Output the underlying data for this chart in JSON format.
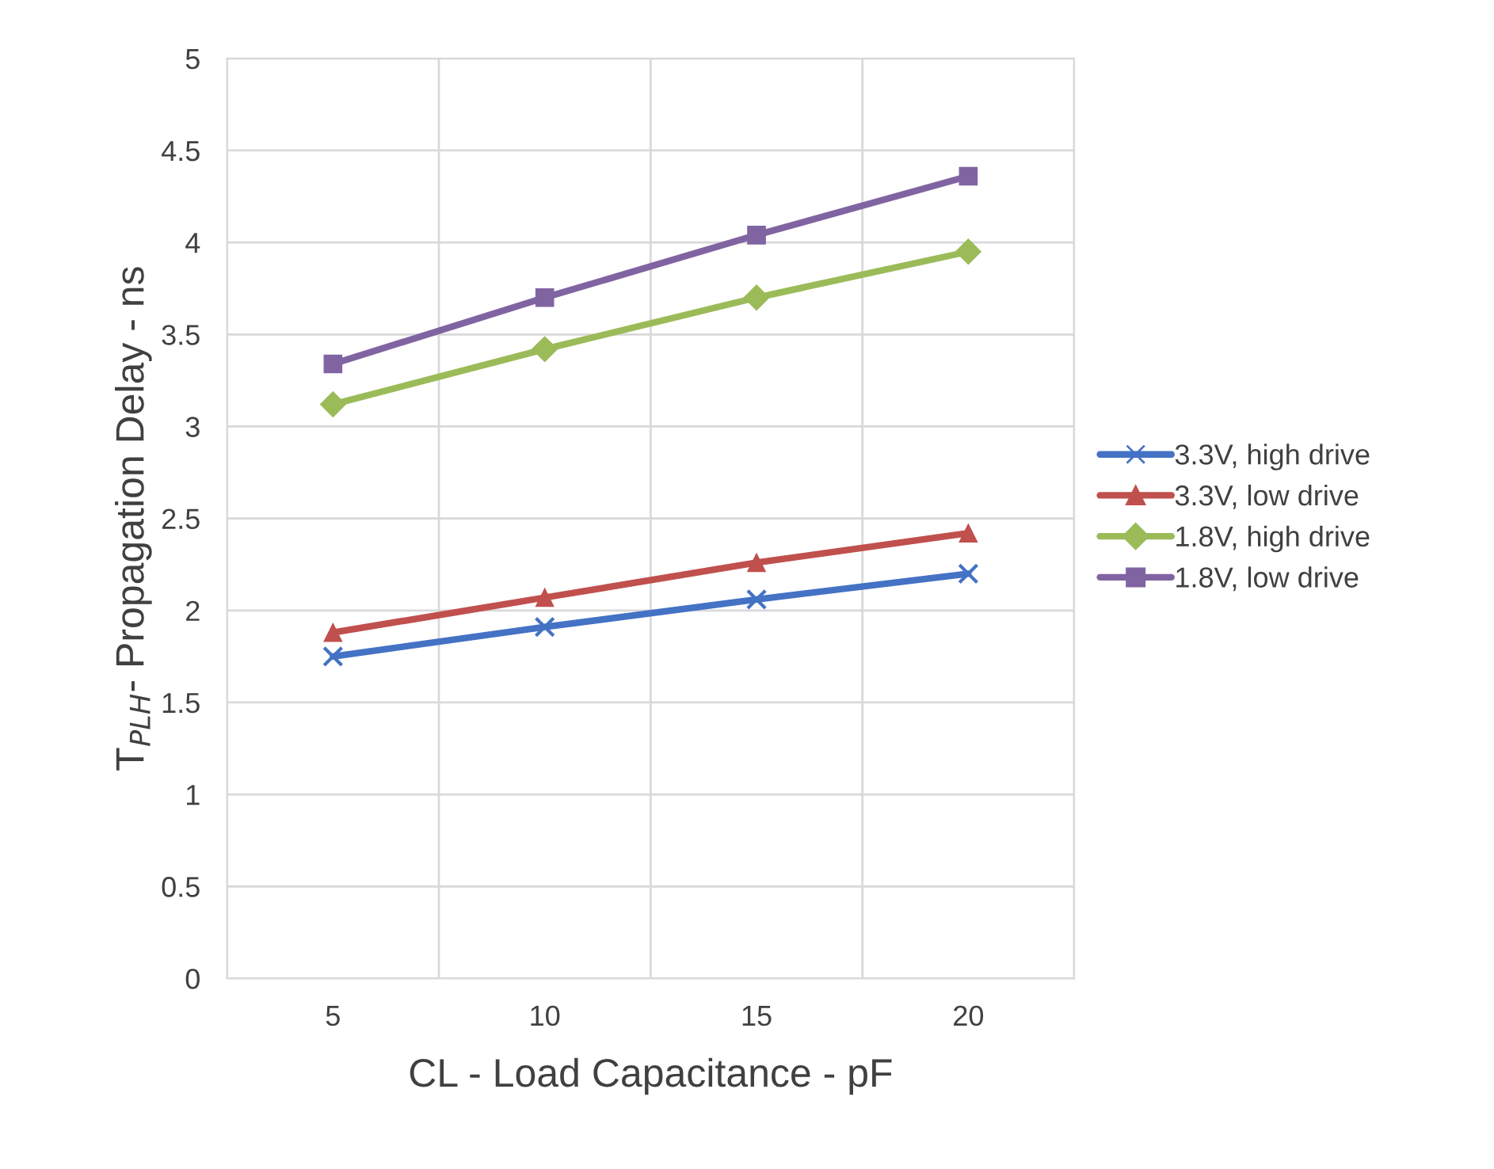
{
  "chart_data": {
    "type": "line",
    "xlabel": "CL - Load Capacitance - pF",
    "ylabel": "T$_{PLH}$- Propagation Delay - ns",
    "categories": [
      "5",
      "10",
      "15",
      "20"
    ],
    "series": [
      {
        "name": "3.3V, high drive",
        "color": "#4472c4",
        "marker": "cross",
        "values": [
          1.75,
          1.91,
          2.06,
          2.2
        ]
      },
      {
        "name": "3.3V, low drive",
        "color": "#c0504d",
        "marker": "triangle",
        "values": [
          1.88,
          2.07,
          2.26,
          2.42
        ]
      },
      {
        "name": "1.8V, high drive",
        "color": "#9bbb59",
        "marker": "diamond",
        "values": [
          3.12,
          3.42,
          3.7,
          3.95
        ]
      },
      {
        "name": "1.8V, low drive",
        "color": "#8064a2",
        "marker": "square",
        "values": [
          3.34,
          3.7,
          4.04,
          4.36
        ]
      }
    ],
    "ylim": [
      0,
      5
    ],
    "yticks": [
      0,
      0.5,
      1,
      1.5,
      2,
      2.5,
      3,
      3.5,
      4,
      4.5,
      5
    ],
    "grid": true,
    "legend": "right",
    "line_style": "solid"
  }
}
